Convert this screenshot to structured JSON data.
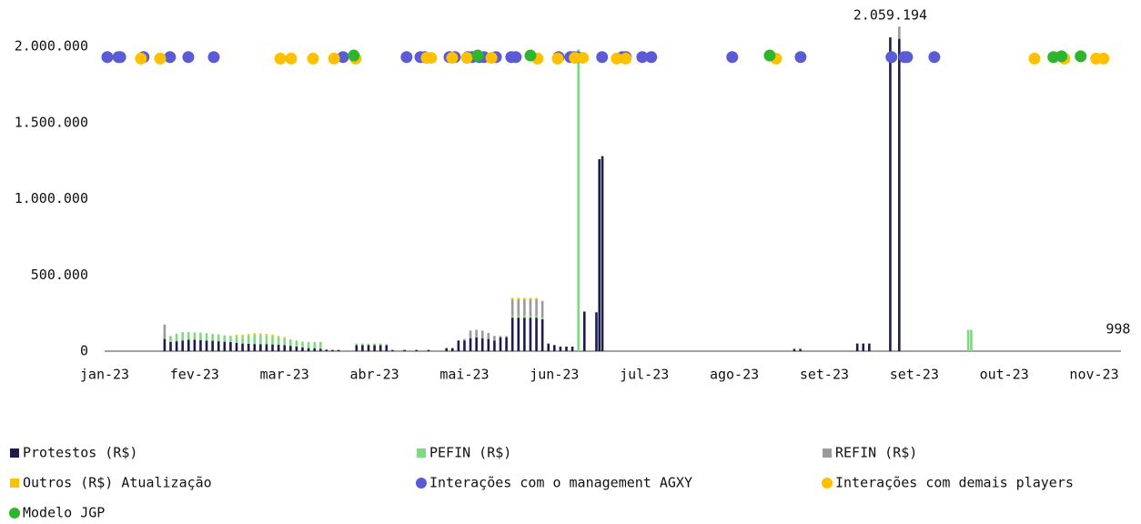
{
  "chart_data": {
    "type": "bar",
    "xlim": [
      0,
      335
    ],
    "xticks": [
      {
        "value": 0,
        "label": "jan-23"
      },
      {
        "value": 30,
        "label": "fev-23"
      },
      {
        "value": 60,
        "label": "mar-23"
      },
      {
        "value": 90,
        "label": "abr-23"
      },
      {
        "value": 120,
        "label": "mai-23"
      },
      {
        "value": 150,
        "label": "jun-23"
      },
      {
        "value": 180,
        "label": "jul-23"
      },
      {
        "value": 210,
        "label": "ago-23"
      },
      {
        "value": 240,
        "label": "set-23"
      },
      {
        "value": 270,
        "label": "set-23"
      },
      {
        "value": 300,
        "label": "out-23"
      },
      {
        "value": 330,
        "label": "nov-23"
      }
    ],
    "ylim": [
      0,
      2000000
    ],
    "yticks": [
      {
        "value": 0,
        "label": "0"
      },
      {
        "value": 500000,
        "label": "500.000"
      },
      {
        "value": 1000000,
        "label": "1.000.000"
      },
      {
        "value": 1500000,
        "label": "1.500.000"
      },
      {
        "value": 2000000,
        "label": "2.000.000"
      }
    ],
    "grid": false,
    "x": [
      20,
      22,
      24,
      26,
      28,
      30,
      32,
      34,
      36,
      38,
      40,
      42,
      44,
      46,
      48,
      50,
      52,
      54,
      56,
      58,
      60,
      62,
      64,
      66,
      68,
      70,
      72,
      74,
      76,
      78,
      84,
      86,
      88,
      90,
      92,
      94,
      96,
      100,
      104,
      108,
      114,
      116,
      118,
      120,
      122,
      124,
      126,
      128,
      130,
      132,
      134,
      136,
      138,
      140,
      142,
      144,
      146,
      148,
      150,
      152,
      154,
      156,
      158,
      160,
      164,
      165,
      166,
      230,
      232,
      251,
      253,
      255,
      262,
      265,
      288,
      289
    ],
    "series": [
      {
        "name": "Protestos (R$)",
        "color": "#1c1c4f",
        "values": [
          80000,
          60000,
          65000,
          70000,
          75000,
          75000,
          72000,
          70000,
          68000,
          65000,
          62000,
          60000,
          55000,
          50000,
          48000,
          47000,
          46000,
          45000,
          44000,
          42000,
          40000,
          35000,
          30000,
          25000,
          20000,
          18000,
          15000,
          10000,
          8000,
          8000,
          40000,
          40000,
          40000,
          40000,
          40000,
          40000,
          8000,
          8000,
          8000,
          8000,
          20000,
          20000,
          70000,
          70000,
          85000,
          90000,
          85000,
          80000,
          70000,
          90000,
          90000,
          220000,
          220000,
          220000,
          220000,
          220000,
          210000,
          50000,
          40000,
          30000,
          30000,
          30000,
          0,
          260000,
          255000,
          1260000,
          1280000,
          15000,
          15000,
          50000,
          50000,
          50000,
          2059194,
          2050000,
          0,
          0
        ]
      },
      {
        "name": "PEFIN (R$)",
        "color": "#7fd97f",
        "values": [
          0,
          40000,
          50000,
          55000,
          50000,
          48000,
          50000,
          48000,
          45000,
          45000,
          42000,
          40000,
          45000,
          50000,
          55000,
          60000,
          60000,
          58000,
          55000,
          50000,
          45000,
          42000,
          40000,
          38000,
          40000,
          42000,
          45000,
          0,
          0,
          0,
          10000,
          10000,
          10000,
          10000,
          10000,
          5000,
          0,
          0,
          0,
          0,
          0,
          0,
          0,
          0,
          0,
          0,
          0,
          0,
          0,
          0,
          0,
          10000,
          10000,
          10000,
          10000,
          10000,
          10000,
          0,
          0,
          0,
          0,
          0,
          1980000,
          0,
          0,
          0,
          0,
          0,
          0,
          0,
          0,
          0,
          0,
          0,
          140000,
          140000
        ]
      },
      {
        "name": "REFIN (R$)",
        "color": "#9a9a9a",
        "values": [
          95000,
          0,
          0,
          0,
          0,
          0,
          0,
          0,
          0,
          0,
          0,
          0,
          0,
          0,
          0,
          0,
          0,
          0,
          0,
          0,
          0,
          0,
          0,
          0,
          0,
          0,
          0,
          0,
          0,
          0,
          0,
          0,
          0,
          0,
          0,
          0,
          0,
          0,
          0,
          0,
          0,
          0,
          0,
          10000,
          50000,
          50000,
          50000,
          40000,
          30000,
          10000,
          10000,
          110000,
          110000,
          110000,
          110000,
          110000,
          110000,
          0,
          0,
          0,
          0,
          0,
          0,
          0,
          0,
          0,
          0,
          0,
          0,
          0,
          0,
          0,
          0,
          80000,
          0,
          0
        ]
      },
      {
        "name": "Outros (R$) Atualização",
        "color": "#ffc000",
        "values": [
          0,
          0,
          0,
          0,
          0,
          0,
          0,
          0,
          0,
          0,
          0,
          0,
          8000,
          8000,
          10000,
          10000,
          10000,
          10000,
          8000,
          8000,
          8000,
          0,
          0,
          0,
          0,
          0,
          0,
          0,
          0,
          0,
          0,
          0,
          0,
          0,
          0,
          0,
          0,
          0,
          0,
          0,
          0,
          0,
          0,
          0,
          0,
          0,
          0,
          0,
          0,
          0,
          0,
          10000,
          10000,
          10000,
          10000,
          10000,
          0,
          0,
          0,
          0,
          0,
          0,
          0,
          0,
          0,
          0,
          0,
          0,
          0,
          0,
          0,
          0,
          0,
          0,
          0,
          0
        ]
      },
      {
        "name": "Interações com o management AGXY",
        "color": "#5b5bd6",
        "type": "scatter",
        "x": [
          0.9,
          4.6,
          5.2,
          13.0,
          21.8,
          27.9,
          36.4,
          79.5,
          100.7,
          105.3,
          106.8,
          115.0,
          116.8,
          121.1,
          122.6,
          125.0,
          126.5,
          130.5,
          135.6,
          137.1,
          151.4,
          155.3,
          156.6,
          157.8,
          165.9,
          172.6,
          173.8,
          179.3,
          182.3,
          209.3,
          232.1,
          262.4,
          266.7,
          267.6,
          276.7
        ],
        "values": [
          1930000,
          1930000,
          1930000,
          1930000,
          1930000,
          1930000,
          1930000,
          1930000,
          1930000,
          1930000,
          1930000,
          1930000,
          1930000,
          1930000,
          1930000,
          1930000,
          1930000,
          1930000,
          1930000,
          1930000,
          1930000,
          1930000,
          1930000,
          1930000,
          1930000,
          1930000,
          1930000,
          1930000,
          1930000,
          1930000,
          1930000,
          1930000,
          1930000,
          1930000,
          1930000
        ]
      },
      {
        "name": "Interações com demais players",
        "color": "#ffc000",
        "type": "scatter",
        "x": [
          12.1,
          18.5,
          58.6,
          62.2,
          69.5,
          76.5,
          83.7,
          107.4,
          108.9,
          115.9,
          120.8,
          129.0,
          144.4,
          151.1,
          156.8,
          159.5,
          170.8,
          173.8,
          223.9,
          310.1,
          320.1,
          330.7,
          333.1
        ],
        "values": [
          1920000,
          1920000,
          1920000,
          1920000,
          1920000,
          1920000,
          1920000,
          1925000,
          1925000,
          1925000,
          1925000,
          1925000,
          1920000,
          1920000,
          1925000,
          1925000,
          1920000,
          1920000,
          1920000,
          1920000,
          1920000,
          1920000,
          1920000
        ]
      },
      {
        "name": "Modelo JGP",
        "color": "#2db52d",
        "type": "scatter",
        "x": [
          83.1,
          124.4,
          142.0,
          221.8,
          316.4,
          319.1,
          325.5
        ],
        "values": [
          1940000,
          1940000,
          1940000,
          1940000,
          1930000,
          1935000,
          1935000
        ]
      }
    ],
    "annotations": [
      {
        "x": 262,
        "value": 2059194,
        "label": "2.059.194"
      },
      {
        "x": 338,
        "value": 998,
        "label": "998"
      }
    ]
  }
}
